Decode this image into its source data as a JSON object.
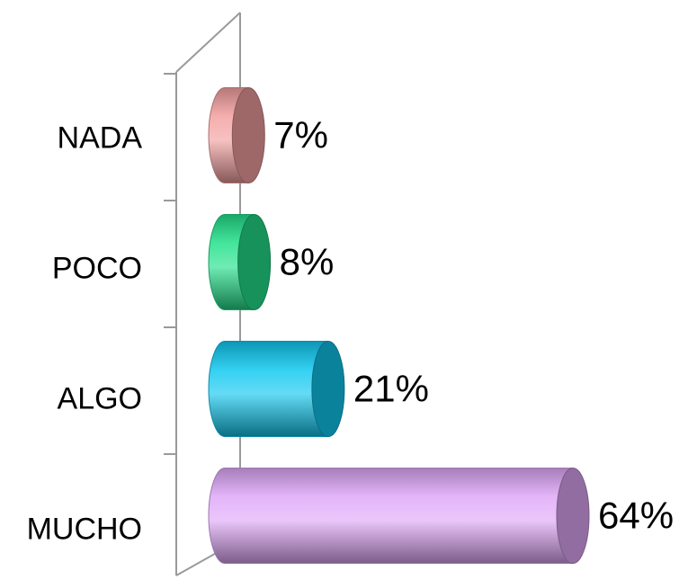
{
  "chart_data": {
    "type": "bar",
    "orientation": "horizontal",
    "style": "3d-cylinder",
    "categories": [
      "NADA",
      "POCO",
      "ALGO",
      "MUCHO"
    ],
    "values": [
      7,
      8,
      21,
      64
    ],
    "value_labels": [
      "7%",
      "8%",
      "21%",
      "64%"
    ],
    "colors": [
      "#f3a0a0",
      "#22e08a",
      "#10c8f0",
      "#dfa8f8"
    ],
    "xlim": [
      0,
      64
    ],
    "grid": false,
    "legend": "none"
  }
}
